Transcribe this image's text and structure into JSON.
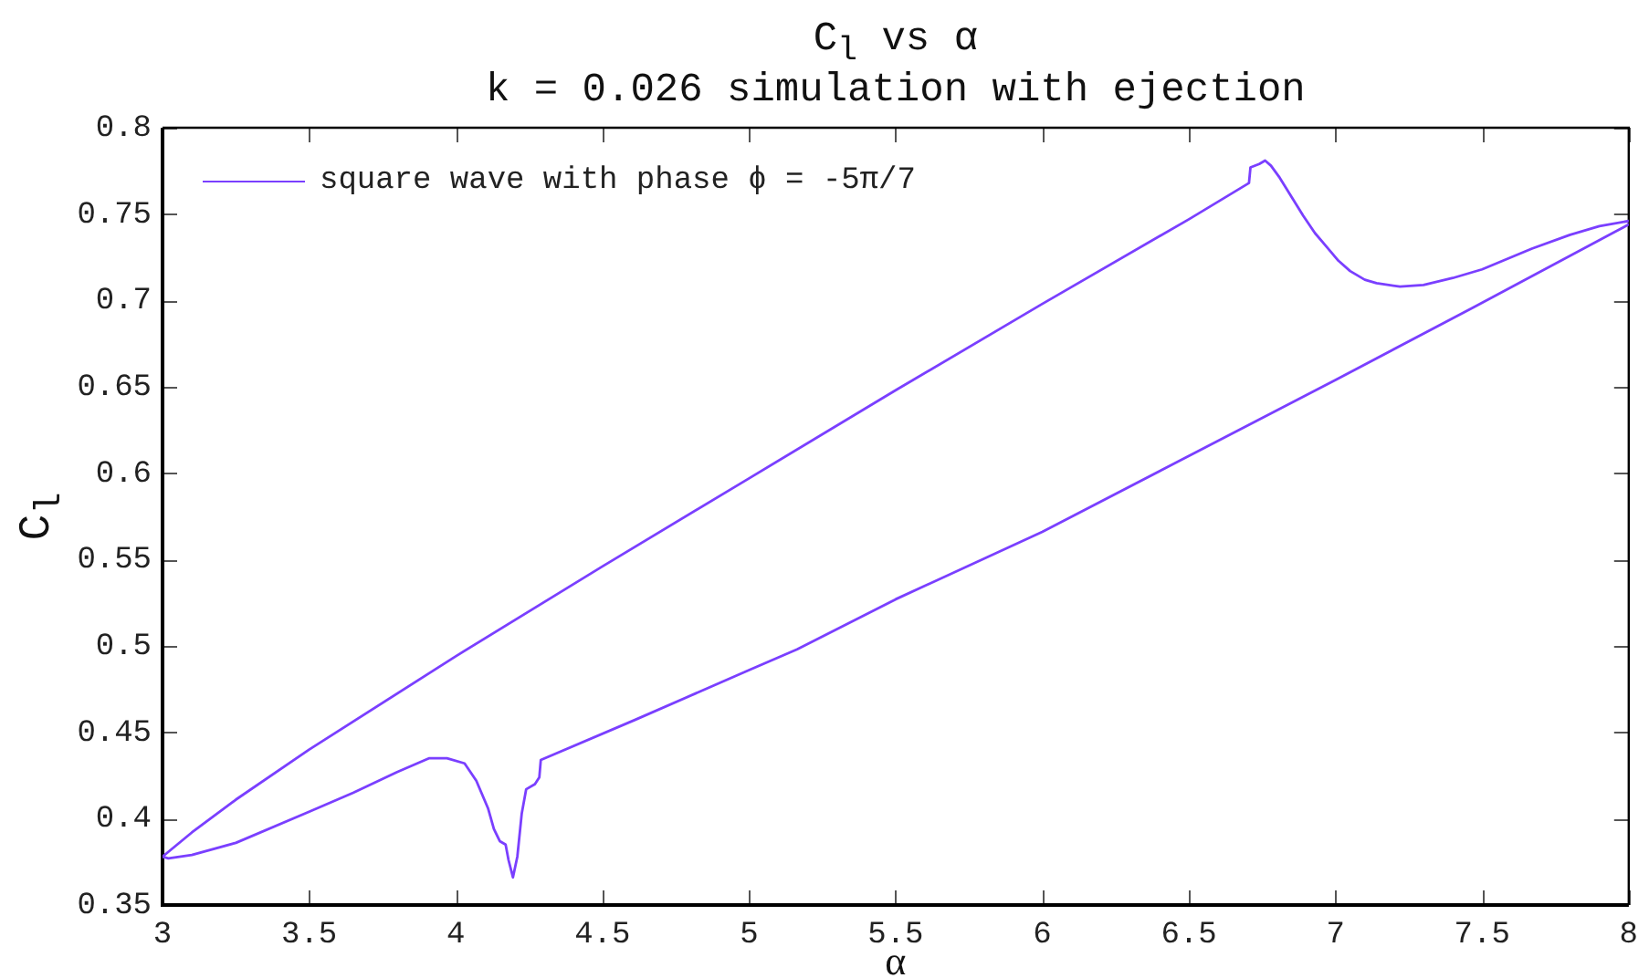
{
  "chart_data": {
    "type": "line",
    "title": "C$_{l}$ vs α",
    "subtitle": "k = 0.026 simulation with ejection",
    "xlabel": "α",
    "ylabel": "C$_{l}$",
    "xlim": [
      3,
      8
    ],
    "ylim": [
      0.35,
      0.8
    ],
    "xticks": [
      3,
      3.5,
      4,
      4.5,
      5,
      5.5,
      6,
      6.5,
      7,
      7.5,
      8
    ],
    "yticks": [
      0.35,
      0.4,
      0.45,
      0.5,
      0.55,
      0.6,
      0.65,
      0.7,
      0.75,
      0.8
    ],
    "legend": "top left",
    "series": [
      {
        "name": "square wave with phase ϕ = -5π/7",
        "color": "#7a3fff",
        "x": [
          3,
          3.1,
          3.25,
          3.5,
          4,
          4.5,
          5,
          5.5,
          6,
          6.5,
          6.705,
          6.71,
          6.74,
          6.76,
          6.78,
          6.81,
          6.85,
          6.89,
          6.93,
          6.97,
          7.01,
          7.05,
          7.1,
          7.14,
          7.22,
          7.3,
          7.4,
          7.5,
          7.67,
          7.8,
          7.9,
          8
        ],
        "values": [
          0.378,
          0.392,
          0.411,
          0.44,
          0.494,
          0.546,
          0.597,
          0.648,
          0.698,
          0.747,
          0.768,
          0.777,
          0.779,
          0.781,
          0.778,
          0.771,
          0.76,
          0.749,
          0.739,
          0.731,
          0.723,
          0.717,
          0.712,
          0.71,
          0.708,
          0.709,
          0.713,
          0.718,
          0.73,
          0.738,
          0.743,
          0.746
        ]
      },
      {
        "color": "#7a3fff",
        "x": [
          3,
          3.02,
          3.1,
          3.25,
          3.5,
          3.65,
          3.8,
          3.91,
          3.97,
          4.03,
          4.07,
          4.11,
          4.13,
          4.15,
          4.17,
          4.18,
          4.195,
          4.21,
          4.225,
          4.24,
          4.27,
          4.285,
          4.29,
          4.609,
          5,
          5.164,
          5.5,
          6,
          6.5,
          7,
          7.47,
          8
        ],
        "values": [
          0.378,
          0.377,
          0.379,
          0.386,
          0.404,
          0.415,
          0.427,
          0.435,
          0.435,
          0.432,
          0.422,
          0.406,
          0.394,
          0.387,
          0.385,
          0.376,
          0.366,
          0.378,
          0.403,
          0.417,
          0.42,
          0.424,
          0.434,
          0.457,
          0.486,
          0.498,
          0.527,
          0.566,
          0.61,
          0.654,
          0.696,
          0.744
        ]
      }
    ]
  }
}
